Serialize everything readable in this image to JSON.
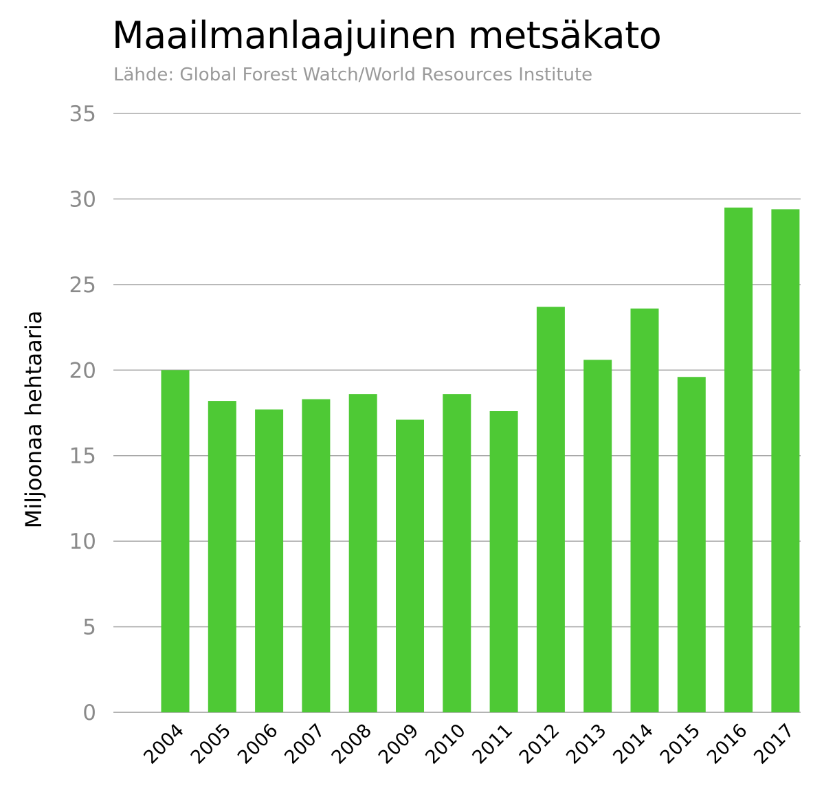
{
  "chart_data": {
    "type": "bar",
    "title": "Maailmanlaajuinen metsäkato",
    "subtitle": "Lähde: Global Forest Watch/World Resources Institute",
    "xlabel": "",
    "ylabel": "Miljoonaa hehtaaria",
    "ylim": [
      0,
      35
    ],
    "yticks": [
      0,
      5,
      10,
      15,
      20,
      25,
      30,
      35
    ],
    "grid": true,
    "bar_color": "#4ec935",
    "categories": [
      "2004",
      "2005",
      "2006",
      "2007",
      "2008",
      "2009",
      "2010",
      "2011",
      "2012",
      "2013",
      "2014",
      "2015",
      "2016",
      "2017"
    ],
    "values": [
      20.0,
      18.2,
      17.7,
      18.3,
      18.6,
      17.1,
      18.6,
      17.6,
      23.7,
      20.6,
      23.6,
      19.6,
      29.5,
      29.4
    ]
  }
}
